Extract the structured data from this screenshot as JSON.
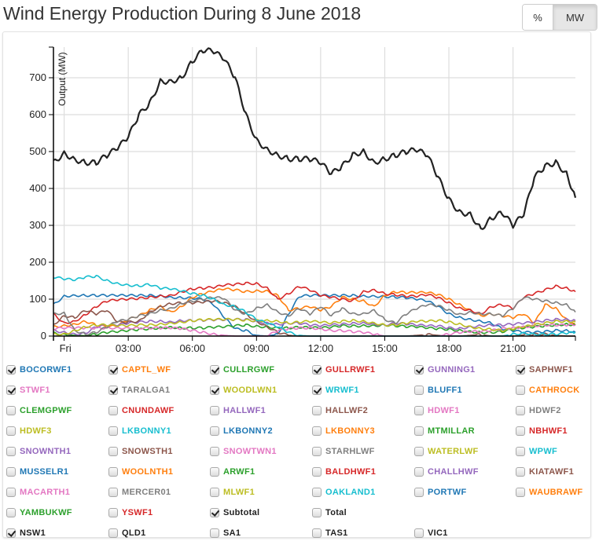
{
  "page": {
    "title": "Wind Energy Production During 8 June 2018",
    "unit_buttons": [
      {
        "label": "%",
        "active": false
      },
      {
        "label": "MW",
        "active": true
      }
    ]
  },
  "chart_data": {
    "type": "line",
    "title": "Wind Energy Production During 8 June 2018",
    "xlabel": "",
    "ylabel": "Output (MW)",
    "xlim_hours": [
      -0.5,
      23.92
    ],
    "ylim": [
      0,
      783
    ],
    "grid": true,
    "x_ticks": [
      {
        "hour": 0,
        "label": "Fri"
      },
      {
        "hour": 3,
        "label": "03:00"
      },
      {
        "hour": 6,
        "label": "06:00"
      },
      {
        "hour": 9,
        "label": "09:00"
      },
      {
        "hour": 12,
        "label": "12:00"
      },
      {
        "hour": 15,
        "label": "15:00"
      },
      {
        "hour": 18,
        "label": "18:00"
      },
      {
        "hour": 21,
        "label": "21:00"
      }
    ],
    "y_ticks": [
      0,
      100,
      200,
      300,
      400,
      500,
      600,
      700
    ],
    "x_hours": [
      -0.5,
      0,
      0.5,
      1,
      1.5,
      2,
      2.5,
      3,
      3.5,
      4,
      4.5,
      5,
      5.5,
      6,
      6.5,
      7,
      7.5,
      8,
      8.5,
      9,
      9.5,
      10,
      10.5,
      11,
      11.5,
      12,
      12.5,
      13,
      13.5,
      14,
      14.5,
      15,
      15.5,
      16,
      16.5,
      17,
      17.5,
      18,
      18.5,
      19,
      19.5,
      20,
      20.5,
      21,
      21.5,
      22,
      22.5,
      23,
      23.5,
      23.92
    ],
    "series": [
      {
        "name": "Subtotal",
        "color": "#222222",
        "values": [
          470,
          495,
          478,
          470,
          470,
          490,
          510,
          540,
          600,
          630,
          690,
          690,
          700,
          745,
          775,
          772,
          750,
          700,
          600,
          530,
          505,
          490,
          480,
          480,
          480,
          470,
          440,
          460,
          490,
          500,
          470,
          480,
          490,
          500,
          505,
          490,
          430,
          370,
          335,
          330,
          290,
          320,
          335,
          300,
          330,
          430,
          460,
          470,
          440,
          375
        ]
      },
      {
        "name": "BOCORWF1",
        "color": "#1f77b4",
        "values": [
          85,
          108,
          110,
          110,
          110,
          110,
          110,
          110,
          110,
          110,
          109,
          105,
          104,
          103,
          100,
          85,
          50,
          20,
          15,
          2,
          0,
          5,
          60,
          108,
          110,
          110,
          110,
          110,
          110,
          108,
          108,
          107,
          106,
          104,
          100,
          95,
          80,
          60,
          50,
          45,
          40,
          35,
          20,
          15,
          10,
          10,
          12,
          15,
          15,
          10
        ]
      },
      {
        "name": "CAPTL_WF",
        "color": "#ff7f0e",
        "values": [
          25,
          28,
          32,
          40,
          30,
          25,
          28,
          45,
          55,
          70,
          80,
          65,
          80,
          105,
          115,
          122,
          128,
          125,
          120,
          122,
          122,
          110,
          70,
          75,
          80,
          70,
          80,
          105,
          100,
          95,
          80,
          110,
          120,
          118,
          118,
          118,
          112,
          100,
          85,
          70,
          55,
          60,
          55,
          50,
          60,
          35,
          85,
          75,
          45,
          30
        ]
      },
      {
        "name": "CULLRGWF",
        "color": "#2ca02c",
        "values": [
          8,
          4,
          2,
          1,
          5,
          10,
          12,
          15,
          18,
          20,
          22,
          24,
          22,
          22,
          22,
          24,
          25,
          28,
          30,
          26,
          25,
          22,
          22,
          24,
          23,
          22,
          24,
          28,
          27,
          28,
          28,
          30,
          28,
          26,
          25,
          22,
          20,
          18,
          15,
          12,
          10,
          10,
          12,
          18,
          22,
          25,
          28,
          30,
          32,
          30
        ]
      },
      {
        "name": "GULLRWF1",
        "color": "#d62728",
        "values": [
          60,
          35,
          40,
          58,
          80,
          95,
          98,
          100,
          102,
          105,
          108,
          110,
          120,
          128,
          130,
          132,
          138,
          140,
          143,
          142,
          130,
          100,
          115,
          135,
          125,
          110,
          105,
          100,
          95,
          120,
          125,
          115,
          112,
          108,
          108,
          112,
          104,
          90,
          75,
          70,
          60,
          80,
          85,
          75,
          105,
          115,
          125,
          135,
          130,
          120
        ]
      },
      {
        "name": "GUNNING1",
        "color": "#9467bd",
        "values": [
          15,
          10,
          5,
          8,
          25,
          30,
          30,
          35,
          38,
          40,
          40,
          38,
          42,
          42,
          43,
          44,
          44,
          45,
          45,
          40,
          35,
          32,
          35,
          35,
          30,
          28,
          30,
          32,
          34,
          35,
          32,
          30,
          35,
          33,
          30,
          28,
          27,
          22,
          20,
          25,
          28,
          30,
          30,
          32,
          35,
          38,
          42,
          45,
          45,
          42
        ]
      },
      {
        "name": "SAPHWF1",
        "color": "#8c564b",
        "values": [
          30,
          55,
          50,
          70,
          60,
          70,
          38,
          38,
          40,
          65,
          80,
          88,
          90,
          90,
          92,
          95,
          90,
          80,
          60,
          40,
          25,
          10,
          2,
          0,
          0,
          0,
          0,
          0,
          0,
          0,
          0,
          0,
          0,
          0,
          2,
          4,
          2,
          0,
          0,
          2,
          4,
          0,
          0,
          0,
          3,
          5,
          5,
          2,
          0,
          0
        ]
      },
      {
        "name": "STWF1",
        "color": "#e377c2",
        "values": [
          20,
          22,
          22,
          22,
          22,
          22,
          22,
          22,
          22,
          22,
          22,
          22,
          20,
          15,
          10,
          5,
          2,
          0,
          0,
          0,
          0,
          15,
          20,
          22,
          22,
          20,
          15,
          15,
          12,
          10,
          5,
          0,
          0,
          0,
          0,
          0,
          0,
          5,
          10,
          12,
          12,
          15,
          20,
          22,
          25,
          28,
          30,
          30,
          30,
          30
        ]
      },
      {
        "name": "TARALGA1",
        "color": "#7f7f7f",
        "values": [
          60,
          62,
          15,
          5,
          10,
          25,
          40,
          45,
          55,
          60,
          70,
          75,
          88,
          95,
          100,
          105,
          102,
          70,
          60,
          75,
          85,
          65,
          55,
          75,
          60,
          80,
          55,
          75,
          60,
          60,
          70,
          45,
          35,
          60,
          75,
          85,
          82,
          70,
          58,
          65,
          60,
          60,
          55,
          75,
          105,
          100,
          95,
          90,
          85,
          65
        ]
      },
      {
        "name": "WOODLWN1",
        "color": "#bcbd22",
        "values": [
          5,
          5,
          15,
          25,
          30,
          30,
          28,
          28,
          30,
          30,
          32,
          35,
          38,
          42,
          44,
          45,
          45,
          45,
          43,
          42,
          42,
          40,
          35,
          38,
          40,
          38,
          35,
          40,
          42,
          40,
          35,
          30,
          30,
          35,
          40,
          40,
          42,
          38,
          32,
          25,
          20,
          18,
          15,
          20,
          25,
          30,
          35,
          40,
          40,
          38
        ]
      },
      {
        "name": "WRWF1",
        "color": "#17becf",
        "values": [
          160,
          155,
          152,
          160,
          162,
          150,
          142,
          138,
          136,
          140,
          130,
          128,
          122,
          115,
          110,
          100,
          85,
          80,
          65,
          45,
          35,
          25,
          10,
          2,
          0,
          0,
          0,
          0,
          0,
          0,
          0,
          0,
          0,
          0,
          0,
          0,
          0,
          0,
          0,
          0,
          0,
          0,
          0,
          5,
          8,
          5,
          5,
          5,
          8,
          10
        ]
      }
    ]
  },
  "legend": {
    "rows": [
      [
        {
          "label": "BOCORWF1",
          "color": "#1f77b4",
          "checked": true
        },
        {
          "label": "CAPTL_WF",
          "color": "#ff7f0e",
          "checked": true
        },
        {
          "label": "CULLRGWF",
          "color": "#2ca02c",
          "checked": true
        },
        {
          "label": "GULLRWF1",
          "color": "#d62728",
          "checked": true
        },
        {
          "label": "GUNNING1",
          "color": "#9467bd",
          "checked": true
        },
        {
          "label": "SAPHWF1",
          "color": "#8c564b",
          "checked": true
        }
      ],
      [
        {
          "label": "STWF1",
          "color": "#e377c2",
          "checked": true
        },
        {
          "label": "TARALGA1",
          "color": "#7f7f7f",
          "checked": true
        },
        {
          "label": "WOODLWN1",
          "color": "#bcbd22",
          "checked": true
        },
        {
          "label": "WRWF1",
          "color": "#17becf",
          "checked": true
        },
        {
          "label": "BLUFF1",
          "color": "#1f77b4",
          "checked": false
        },
        {
          "label": "CATHROCK",
          "color": "#ff7f0e",
          "checked": false
        }
      ],
      [
        {
          "label": "CLEMGPWF",
          "color": "#2ca02c",
          "checked": false
        },
        {
          "label": "CNUNDAWF",
          "color": "#d62728",
          "checked": false
        },
        {
          "label": "HALLWF1",
          "color": "#9467bd",
          "checked": false
        },
        {
          "label": "HALLWF2",
          "color": "#8c564b",
          "checked": false
        },
        {
          "label": "HDWF1",
          "color": "#e377c2",
          "checked": false
        },
        {
          "label": "HDWF2",
          "color": "#7f7f7f",
          "checked": false
        }
      ],
      [
        {
          "label": "HDWF3",
          "color": "#bcbd22",
          "checked": false
        },
        {
          "label": "LKBONNY1",
          "color": "#17becf",
          "checked": false
        },
        {
          "label": "LKBONNY2",
          "color": "#1f77b4",
          "checked": false
        },
        {
          "label": "LKBONNY3",
          "color": "#ff7f0e",
          "checked": false
        },
        {
          "label": "MTMILLAR",
          "color": "#2ca02c",
          "checked": false
        },
        {
          "label": "NBHWF1",
          "color": "#d62728",
          "checked": false
        }
      ],
      [
        {
          "label": "SNOWNTH1",
          "color": "#9467bd",
          "checked": false
        },
        {
          "label": "SNOWSTH1",
          "color": "#8c564b",
          "checked": false
        },
        {
          "label": "SNOWTWN1",
          "color": "#e377c2",
          "checked": false
        },
        {
          "label": "STARHLWF",
          "color": "#7f7f7f",
          "checked": false
        },
        {
          "label": "WATERLWF",
          "color": "#bcbd22",
          "checked": false
        },
        {
          "label": "WPWF",
          "color": "#17becf",
          "checked": false
        }
      ],
      [
        {
          "label": "MUSSELR1",
          "color": "#1f77b4",
          "checked": false
        },
        {
          "label": "WOOLNTH1",
          "color": "#ff7f0e",
          "checked": false
        },
        {
          "label": "ARWF1",
          "color": "#2ca02c",
          "checked": false
        },
        {
          "label": "BALDHWF1",
          "color": "#d62728",
          "checked": false
        },
        {
          "label": "CHALLHWF",
          "color": "#9467bd",
          "checked": false
        },
        {
          "label": "KIATAWF1",
          "color": "#8c564b",
          "checked": false
        }
      ],
      [
        {
          "label": "MACARTH1",
          "color": "#e377c2",
          "checked": false
        },
        {
          "label": "MERCER01",
          "color": "#7f7f7f",
          "checked": false
        },
        {
          "label": "MLWF1",
          "color": "#bcbd22",
          "checked": false
        },
        {
          "label": "OAKLAND1",
          "color": "#17becf",
          "checked": false
        },
        {
          "label": "PORTWF",
          "color": "#1f77b4",
          "checked": false
        },
        {
          "label": "WAUBRAWF",
          "color": "#ff7f0e",
          "checked": false
        }
      ],
      [
        {
          "label": "YAMBUKWF",
          "color": "#2ca02c",
          "checked": false
        },
        {
          "label": "YSWF1",
          "color": "#d62728",
          "checked": false
        },
        {
          "label": "Subtotal",
          "color": "#222222",
          "checked": true
        },
        {
          "label": "Total",
          "color": "#222222",
          "checked": false
        }
      ],
      [
        {
          "label": "NSW1",
          "color": "#222222",
          "checked": true
        },
        {
          "label": "QLD1",
          "color": "#222222",
          "checked": false
        },
        {
          "label": "SA1",
          "color": "#222222",
          "checked": false
        },
        {
          "label": "TAS1",
          "color": "#222222",
          "checked": false
        },
        {
          "label": "VIC1",
          "color": "#222222",
          "checked": false
        }
      ]
    ]
  }
}
